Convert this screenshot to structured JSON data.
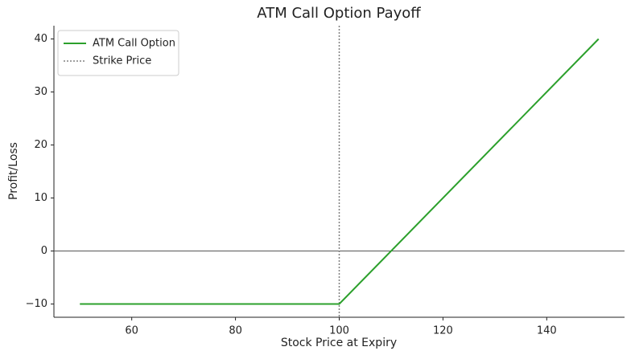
{
  "chart_data": {
    "type": "line",
    "title": "ATM Call Option Payoff",
    "x_label": "Stock Price at Expiry",
    "y_label": "Profit/Loss",
    "x": [
      50,
      100,
      150
    ],
    "series": [
      {
        "name": "ATM Call Option",
        "color": "#2ca02c",
        "values": [
          -10,
          -10,
          40
        ]
      }
    ],
    "vline": {
      "name": "Strike Price",
      "x": 100,
      "color": "#808080"
    },
    "hline": {
      "y": 0,
      "color": "#555555"
    },
    "xlim": [
      45,
      155
    ],
    "xticks": [
      60,
      80,
      100,
      120,
      140
    ],
    "ylim": [
      -12.5,
      42.5
    ],
    "yticks": [
      {
        "value": -10,
        "label": "−10"
      },
      0,
      10,
      20,
      30,
      40
    ],
    "legend": "upper left",
    "grid": false
  }
}
